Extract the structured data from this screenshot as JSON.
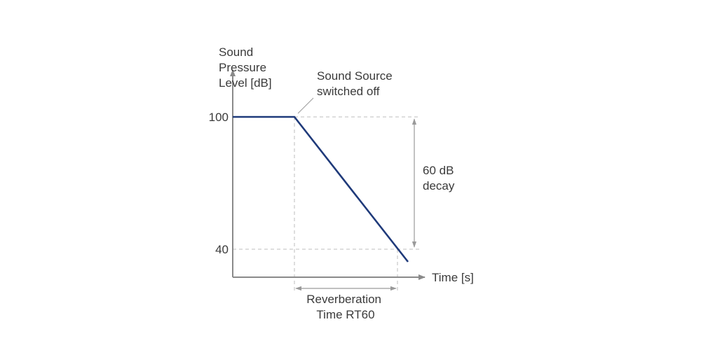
{
  "y_axis": {
    "label_lines": [
      "Sound",
      "Pressure",
      "Level [dB]"
    ],
    "ticks": [
      {
        "value": 100,
        "label": "100"
      },
      {
        "value": 40,
        "label": "40"
      }
    ]
  },
  "x_axis": {
    "label": "Time [s]"
  },
  "annotations": {
    "source_off": [
      "Sound Source",
      "switched off"
    ],
    "decay": [
      "60 dB",
      "decay"
    ],
    "rt60": [
      "Reverberation",
      "Time RT60"
    ]
  },
  "colors": {
    "decay_curve": "#1f3a7a",
    "axis": "#8a8a8a",
    "guide": "#bdbdbd",
    "text": "#3a3a3a"
  }
}
